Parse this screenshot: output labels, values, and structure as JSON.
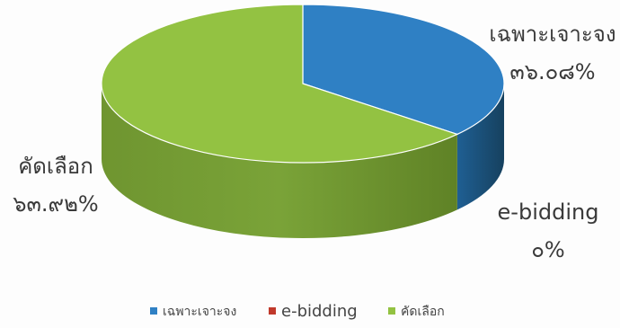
{
  "chart_data": {
    "type": "pie",
    "style": "3d",
    "slices": [
      {
        "name": "เฉพาะเจาะจง",
        "label": "๓๖.๐๘%",
        "value": 36.08,
        "color": "#2f80c4"
      },
      {
        "name": "e-bidding",
        "label": "๐%",
        "value": 0,
        "color": "#c0392b"
      },
      {
        "name": "คัดเลือก",
        "label": "๖๓.๙๒%",
        "value": 63.92,
        "color": "#93c242"
      }
    ],
    "legend": {
      "placement": "bottom",
      "items": [
        "เฉพาะเจาะจง",
        "e-bidding",
        "คัดเลือก"
      ]
    }
  }
}
